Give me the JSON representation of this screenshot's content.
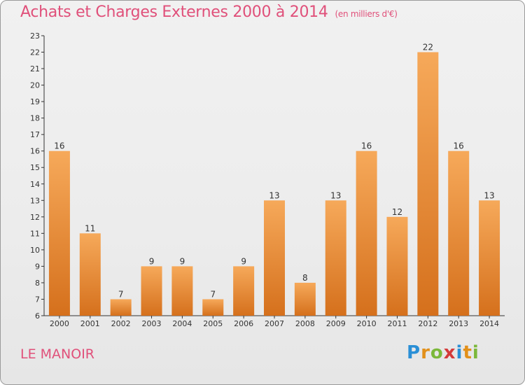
{
  "header": {
    "title": "Achats et Charges Externes 2000 à 2014",
    "unit": "(en milliers d'€)"
  },
  "footer": {
    "place": "LE MANOIR",
    "logo_letters": [
      "P",
      "r",
      "o",
      "x",
      "i",
      "t",
      "i"
    ],
    "logo_colors": [
      "#2a8fd6",
      "#e2901a",
      "#7bb83a",
      "#d43a3a",
      "#2a8fd6",
      "#e2901a",
      "#7bb83a"
    ]
  },
  "colors": {
    "bar_light": "#f5a553",
    "bar_dark": "#d8731e",
    "title": "#e0507a",
    "axis": "#333333"
  },
  "chart_data": {
    "type": "bar",
    "title": "Achats et Charges Externes 2000 à 2014",
    "subtitle": "(en milliers d'€)",
    "categories": [
      "2000",
      "2001",
      "2002",
      "2003",
      "2004",
      "2005",
      "2006",
      "2007",
      "2008",
      "2009",
      "2010",
      "2011",
      "2012",
      "2013",
      "2014"
    ],
    "values": [
      16,
      11,
      7,
      9,
      9,
      7,
      9,
      13,
      8,
      13,
      16,
      12,
      22,
      16,
      13
    ],
    "ylim": [
      6,
      23
    ],
    "yticks": [
      6,
      7,
      8,
      9,
      10,
      11,
      12,
      13,
      14,
      15,
      16,
      17,
      18,
      19,
      20,
      21,
      22,
      23
    ],
    "grid": false,
    "legend": "none"
  }
}
